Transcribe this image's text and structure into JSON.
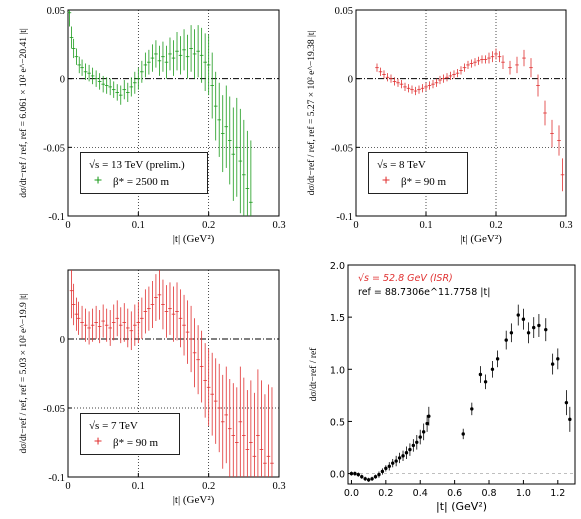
{
  "chart_data": [
    {
      "type": "scatter",
      "panel": "top-left",
      "x_tick_labels": [
        "0",
        "0.1",
        "0.2",
        "0.3"
      ],
      "y_tick_labels": [
        "0.05",
        "0",
        "-0.05",
        "-0.1"
      ],
      "xlabel": "|t|   (GeV²)",
      "ylabel_main": "dσ/dt−ref / ref",
      "ylabel_ref": ",   ref = 6.061 × 10² e^−20.41 |t|",
      "xlim": [
        0,
        0.3
      ],
      "ylim": [
        -0.1,
        0.05
      ],
      "legend": {
        "line1": "√s = 13 TeV (prelim.)",
        "line2": "β* = 2500 m",
        "placement": "bottom-left"
      },
      "color": "#1a9a1a",
      "series": [
        {
          "name": "β* = 2500 m",
          "x": [
            0.002,
            0.005,
            0.008,
            0.012,
            0.016,
            0.02,
            0.025,
            0.03,
            0.035,
            0.04,
            0.045,
            0.05,
            0.055,
            0.06,
            0.065,
            0.07,
            0.075,
            0.08,
            0.085,
            0.09,
            0.095,
            0.1,
            0.105,
            0.11,
            0.115,
            0.12,
            0.125,
            0.13,
            0.135,
            0.14,
            0.145,
            0.15,
            0.155,
            0.16,
            0.165,
            0.17,
            0.175,
            0.18,
            0.185,
            0.19,
            0.195,
            0.2,
            0.205,
            0.21,
            0.215,
            0.22,
            0.225,
            0.23,
            0.235,
            0.24,
            0.245,
            0.25,
            0.255,
            0.26
          ],
          "y": [
            0.048,
            0.03,
            0.022,
            0.016,
            0.01,
            0.008,
            0.005,
            0.004,
            0.002,
            0.0,
            -0.002,
            -0.004,
            -0.005,
            -0.006,
            -0.008,
            -0.01,
            -0.012,
            -0.008,
            -0.01,
            -0.006,
            -0.003,
            0.0,
            0.005,
            0.01,
            0.012,
            0.015,
            0.018,
            0.013,
            0.016,
            0.012,
            0.018,
            0.015,
            0.02,
            0.017,
            0.021,
            0.016,
            0.022,
            0.018,
            0.02,
            0.017,
            0.012,
            0.01,
            -0.005,
            -0.02,
            -0.03,
            -0.04,
            -0.035,
            -0.045,
            -0.055,
            -0.05,
            -0.06,
            -0.07,
            -0.08,
            -0.09
          ],
          "err": [
            0.01,
            0.008,
            0.007,
            0.006,
            0.006,
            0.006,
            0.006,
            0.006,
            0.006,
            0.006,
            0.006,
            0.006,
            0.006,
            0.006,
            0.006,
            0.006,
            0.007,
            0.007,
            0.007,
            0.007,
            0.008,
            0.008,
            0.008,
            0.009,
            0.009,
            0.01,
            0.01,
            0.011,
            0.011,
            0.012,
            0.012,
            0.013,
            0.014,
            0.014,
            0.015,
            0.016,
            0.017,
            0.018,
            0.019,
            0.02,
            0.021,
            0.022,
            0.024,
            0.025,
            0.027,
            0.028,
            0.03,
            0.032,
            0.034,
            0.036,
            0.038,
            0.04,
            0.042,
            0.045
          ]
        }
      ]
    },
    {
      "type": "scatter",
      "panel": "top-right",
      "x_tick_labels": [
        "0",
        "0.1",
        "0.2",
        "0.3"
      ],
      "y_tick_labels": [
        "0.05",
        "0",
        "-0.05",
        "-0.1"
      ],
      "xlabel": "|t|   (GeV²)",
      "ylabel_main": "dσ/dt−ref / ref",
      "ylabel_ref": ",   ref = 5.27 × 10² e^−19.38 |t|",
      "xlim": [
        0,
        0.3
      ],
      "ylim": [
        -0.1,
        0.05
      ],
      "legend": {
        "line1": "√s = 8 TeV",
        "line2": "β* = 90 m",
        "placement": "bottom-left"
      },
      "color": "#e03030",
      "series": [
        {
          "name": "β* = 90 m",
          "x": [
            0.03,
            0.035,
            0.04,
            0.045,
            0.05,
            0.055,
            0.06,
            0.065,
            0.07,
            0.075,
            0.08,
            0.085,
            0.09,
            0.095,
            0.1,
            0.105,
            0.11,
            0.115,
            0.12,
            0.125,
            0.13,
            0.135,
            0.14,
            0.145,
            0.15,
            0.155,
            0.16,
            0.165,
            0.17,
            0.175,
            0.18,
            0.185,
            0.19,
            0.195,
            0.2,
            0.205,
            0.21,
            0.22,
            0.23,
            0.24,
            0.25,
            0.26,
            0.27,
            0.28,
            0.29,
            0.295
          ],
          "y": [
            0.008,
            0.005,
            0.003,
            0.001,
            0.0,
            -0.002,
            -0.003,
            -0.004,
            -0.006,
            -0.007,
            -0.008,
            -0.009,
            -0.008,
            -0.007,
            -0.006,
            -0.005,
            -0.004,
            -0.003,
            -0.001,
            0.0,
            0.001,
            0.002,
            0.003,
            0.004,
            0.006,
            0.008,
            0.01,
            0.011,
            0.012,
            0.013,
            0.014,
            0.014,
            0.015,
            0.016,
            0.018,
            0.016,
            0.012,
            0.008,
            0.01,
            0.015,
            0.008,
            -0.005,
            -0.025,
            -0.04,
            -0.045,
            -0.07
          ],
          "err": [
            0.003,
            0.003,
            0.003,
            0.003,
            0.003,
            0.003,
            0.003,
            0.003,
            0.003,
            0.003,
            0.003,
            0.003,
            0.003,
            0.003,
            0.003,
            0.003,
            0.003,
            0.003,
            0.003,
            0.003,
            0.003,
            0.003,
            0.003,
            0.003,
            0.003,
            0.003,
            0.003,
            0.003,
            0.003,
            0.003,
            0.003,
            0.003,
            0.004,
            0.004,
            0.004,
            0.004,
            0.005,
            0.005,
            0.006,
            0.006,
            0.007,
            0.008,
            0.009,
            0.01,
            0.011,
            0.012
          ]
        }
      ]
    },
    {
      "type": "scatter",
      "panel": "bottom-left",
      "x_tick_labels": [
        "0",
        "0.1",
        "0.2",
        "0.3"
      ],
      "y_tick_labels": [
        "0",
        "-0.05",
        "-0.1"
      ],
      "xlabel": "|t|   (GeV²)",
      "ylabel_main": "dσ/dt−ref / ref",
      "ylabel_ref": ",   ref = 5.03 × 10² e^−19.9 |t|",
      "xlim": [
        0,
        0.3
      ],
      "ylim": [
        -0.1,
        0.05
      ],
      "legend": {
        "line1": "√s = 7 TeV",
        "line2": "β* = 90 m",
        "placement": "bottom-left"
      },
      "color": "#e03030",
      "series": [
        {
          "name": "β* = 90 m",
          "x": [
            0.005,
            0.008,
            0.012,
            0.015,
            0.02,
            0.025,
            0.03,
            0.035,
            0.04,
            0.045,
            0.05,
            0.055,
            0.06,
            0.065,
            0.07,
            0.075,
            0.08,
            0.085,
            0.09,
            0.095,
            0.1,
            0.105,
            0.11,
            0.115,
            0.12,
            0.125,
            0.13,
            0.135,
            0.14,
            0.145,
            0.15,
            0.155,
            0.16,
            0.165,
            0.17,
            0.175,
            0.18,
            0.185,
            0.19,
            0.195,
            0.2,
            0.205,
            0.21,
            0.215,
            0.22,
            0.225,
            0.23,
            0.235,
            0.24,
            0.245,
            0.25,
            0.255,
            0.26,
            0.265,
            0.27,
            0.275,
            0.28,
            0.285,
            0.29
          ],
          "y": [
            0.035,
            0.025,
            0.018,
            0.015,
            0.012,
            0.01,
            0.008,
            0.01,
            0.012,
            0.009,
            0.013,
            0.01,
            0.008,
            0.012,
            0.015,
            0.01,
            0.012,
            0.008,
            0.006,
            0.01,
            0.012,
            0.015,
            0.02,
            0.022,
            0.025,
            0.03,
            0.032,
            0.025,
            0.02,
            0.022,
            0.018,
            0.02,
            0.015,
            0.01,
            0.005,
            0.0,
            -0.01,
            -0.015,
            -0.02,
            -0.03,
            -0.035,
            -0.04,
            -0.045,
            -0.05,
            -0.06,
            -0.055,
            -0.065,
            -0.07,
            -0.075,
            -0.06,
            -0.07,
            -0.08,
            -0.075,
            -0.085,
            -0.07,
            -0.08,
            -0.09,
            -0.085,
            -0.09
          ],
          "err": [
            0.02,
            0.015,
            0.012,
            0.012,
            0.012,
            0.012,
            0.012,
            0.012,
            0.012,
            0.012,
            0.012,
            0.012,
            0.013,
            0.013,
            0.013,
            0.013,
            0.014,
            0.014,
            0.014,
            0.015,
            0.015,
            0.015,
            0.016,
            0.016,
            0.017,
            0.017,
            0.018,
            0.018,
            0.019,
            0.019,
            0.02,
            0.021,
            0.021,
            0.022,
            0.023,
            0.024,
            0.025,
            0.025,
            0.026,
            0.027,
            0.028,
            0.03,
            0.031,
            0.032,
            0.034,
            0.035,
            0.036,
            0.038,
            0.04,
            0.04,
            0.042,
            0.043,
            0.045,
            0.046,
            0.048,
            0.05,
            0.05,
            0.052,
            0.055
          ]
        }
      ]
    },
    {
      "type": "scatter",
      "panel": "bottom-right",
      "x_tick_labels": [
        "0.0",
        "0.2",
        "0.4",
        "0.6",
        "0.8",
        "1.0",
        "1.2"
      ],
      "y_tick_labels": [
        "0.0",
        "0.5",
        "1.0",
        "1.5",
        "2.0"
      ],
      "xlabel": "|t| (GeV²)",
      "ylabel": "dσ/dt−ref / ref",
      "xlim": [
        -0.02,
        1.3
      ],
      "ylim": [
        -0.1,
        2.0
      ],
      "annotation_line1": "√s = 52.8 GeV (ISR)",
      "annotation_line2": "ref = 88.7306e^11.7758 |t|",
      "color": "#000000",
      "series": [
        {
          "name": "ISR",
          "x": [
            0.0,
            0.02,
            0.04,
            0.06,
            0.08,
            0.1,
            0.12,
            0.14,
            0.16,
            0.18,
            0.2,
            0.22,
            0.24,
            0.26,
            0.28,
            0.3,
            0.32,
            0.34,
            0.36,
            0.38,
            0.4,
            0.42,
            0.44,
            0.45,
            0.65,
            0.7,
            0.75,
            0.78,
            0.82,
            0.85,
            0.9,
            0.93,
            0.97,
            1.0,
            1.03,
            1.06,
            1.09,
            1.13,
            1.17,
            1.2,
            1.25,
            1.27
          ],
          "y": [
            0.0,
            0.0,
            -0.01,
            -0.03,
            -0.05,
            -0.06,
            -0.05,
            -0.03,
            -0.01,
            0.02,
            0.05,
            0.07,
            0.1,
            0.12,
            0.15,
            0.17,
            0.2,
            0.23,
            0.27,
            0.3,
            0.35,
            0.4,
            0.48,
            0.55,
            0.38,
            0.62,
            0.95,
            0.88,
            1.0,
            1.1,
            1.28,
            1.35,
            1.52,
            1.48,
            1.35,
            1.4,
            1.42,
            1.38,
            1.05,
            1.1,
            0.68,
            0.52
          ],
          "err": [
            0.02,
            0.02,
            0.02,
            0.02,
            0.02,
            0.02,
            0.02,
            0.02,
            0.03,
            0.03,
            0.03,
            0.04,
            0.04,
            0.05,
            0.05,
            0.05,
            0.06,
            0.06,
            0.06,
            0.07,
            0.07,
            0.08,
            0.08,
            0.09,
            0.05,
            0.06,
            0.08,
            0.07,
            0.08,
            0.08,
            0.09,
            0.09,
            0.1,
            0.1,
            0.1,
            0.1,
            0.11,
            0.11,
            0.1,
            0.1,
            0.12,
            0.12
          ]
        }
      ]
    }
  ]
}
